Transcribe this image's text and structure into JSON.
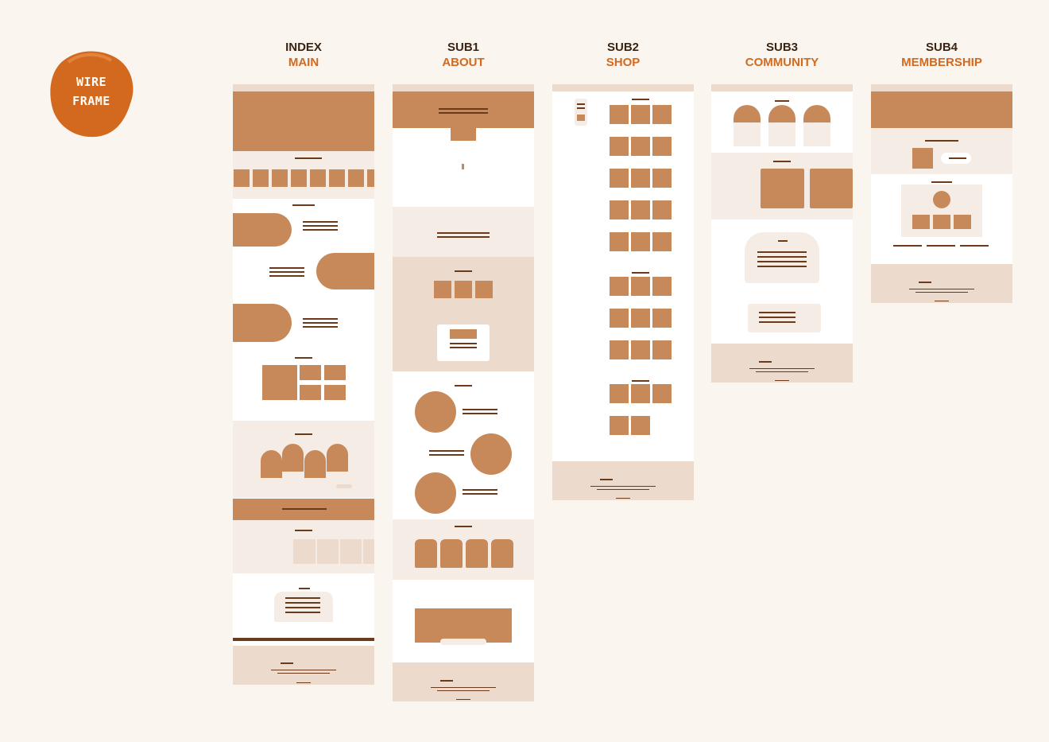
{
  "badge": {
    "line1": "WIRE",
    "line2": "FRAME",
    "color": "#d2691e"
  },
  "pages": [
    {
      "code": "INDEX",
      "label": "MAIN"
    },
    {
      "code": "SUB1",
      "label": "ABOUT"
    },
    {
      "code": "SUB2",
      "label": "SHOP"
    },
    {
      "code": "SUB3",
      "label": "COMMUNITY"
    },
    {
      "code": "SUB4",
      "label": "MEMBERSHIP"
    }
  ],
  "colors": {
    "background": "#faf6ef",
    "block": "#c8895a",
    "light": "#f5ede5",
    "medium": "#ecdbcc",
    "text_bar": "#6a3a1a",
    "accent": "#d2691e",
    "title": "#3a2414"
  }
}
